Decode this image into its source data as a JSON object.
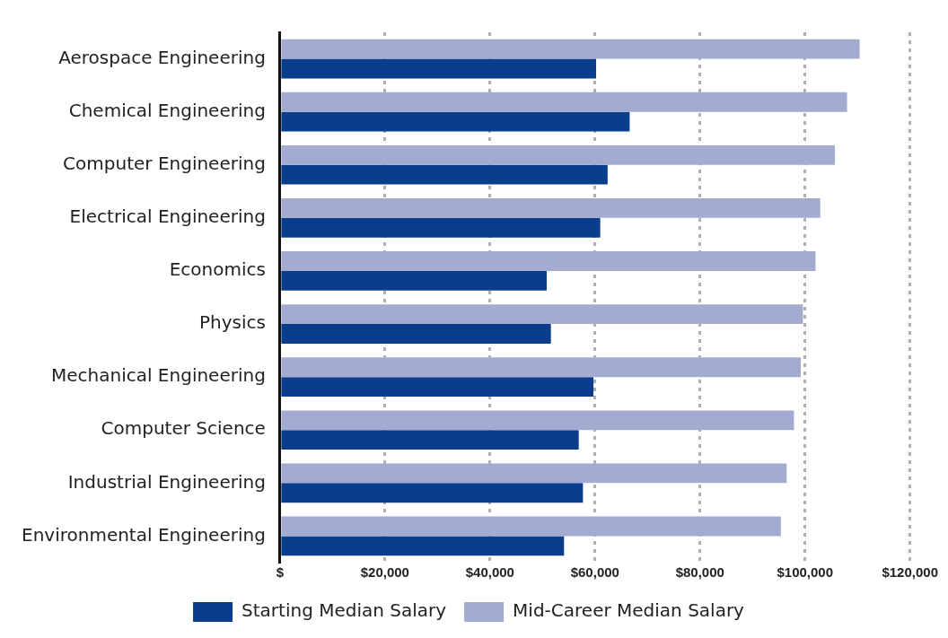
{
  "chart_data": {
    "type": "bar",
    "orientation": "horizontal",
    "categories": [
      "Aerospace Engineering",
      "Chemical Engineering",
      "Computer Engineering",
      "Electrical Engineering",
      "Economics",
      "Physics",
      "Mechanical Engineering",
      "Computer Science",
      "Industrial Engineering",
      "Environmental Engineering"
    ],
    "series": [
      {
        "name": "Starting Median Salary",
        "color": "#0a3d8c",
        "values": [
          60200,
          66600,
          62400,
          61000,
          50800,
          51600,
          59700,
          56900,
          57700,
          54100
        ]
      },
      {
        "name": "Mid-Career Median Salary",
        "color": "#a4abd1",
        "values": [
          110400,
          108000,
          105700,
          102900,
          102000,
          99600,
          99200,
          97900,
          96500,
          95400
        ]
      }
    ],
    "xlim": [
      0,
      120000
    ],
    "xticks": [
      {
        "value": 0,
        "label": "$"
      },
      {
        "value": 20000,
        "label": "$20,000"
      },
      {
        "value": 40000,
        "label": "$40,000"
      },
      {
        "value": 60000,
        "label": "$60,000"
      },
      {
        "value": 80000,
        "label": "$80,000"
      },
      {
        "value": 100000,
        "label": "$100,000"
      },
      {
        "value": 120000,
        "label": "$120,000"
      }
    ],
    "grid": "x",
    "legend": "bottom"
  }
}
